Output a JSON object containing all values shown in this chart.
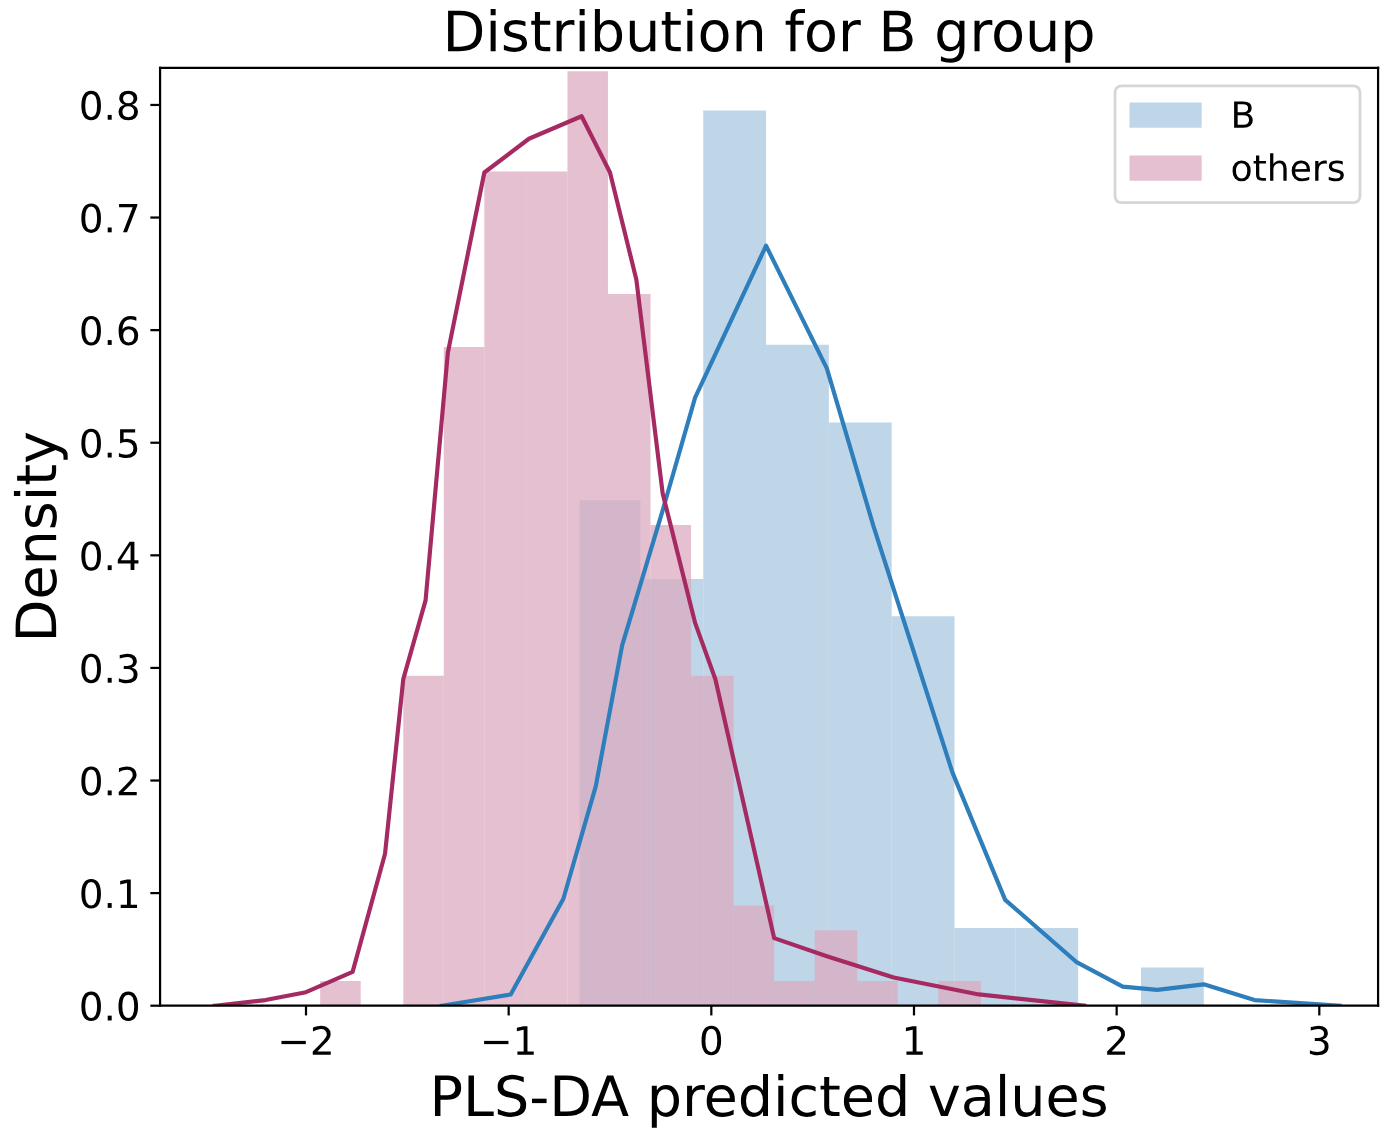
{
  "chart_data": {
    "type": "histogram",
    "title": "Distribution for B group",
    "xlabel": "PLS-DA predicted values",
    "ylabel": "Density",
    "xlim": [
      -2.72,
      3.29
    ],
    "ylim": [
      0,
      0.833
    ],
    "xticks": [
      {
        "value": -2,
        "label": "−2"
      },
      {
        "value": -1,
        "label": "−1"
      },
      0,
      1,
      2,
      3
    ],
    "yticks": [
      {
        "value": 0,
        "label": "0.0"
      },
      0.1,
      0.2,
      0.3,
      0.4,
      0.5,
      0.6,
      0.7,
      0.8
    ],
    "grid": false,
    "legend": "top right",
    "series": [
      {
        "name": "B",
        "color": "#a9c8e1",
        "bins": [
          -0.65,
          -0.35,
          -0.04,
          0.27,
          0.58,
          0.89,
          1.2,
          1.5,
          1.81,
          2.12,
          2.43
        ],
        "values": [
          0.449,
          0.379,
          0.795,
          0.587,
          0.518,
          0.346,
          0.069,
          0.069,
          0,
          0.034
        ]
      },
      {
        "name": "others",
        "color": "#dbabc0",
        "bins": [
          -1.93,
          -1.73,
          -1.52,
          -1.32,
          -1.12,
          -0.91,
          -0.71,
          -0.51,
          -0.3,
          -0.1,
          0.11,
          0.31,
          0.51,
          0.72,
          0.92,
          1.12,
          1.33
        ],
        "values": [
          0.022,
          0,
          0.293,
          0.585,
          0.741,
          0.741,
          0.83,
          0.632,
          0.427,
          0.293,
          0.089,
          0.022,
          0.067,
          0.022,
          0,
          0.022
        ]
      },
      {
        "type": "line",
        "color": "#2e7ebc",
        "x": [
          -1.33,
          -0.99,
          -0.73,
          -0.57,
          -0.44,
          -0.24,
          -0.08,
          0.27,
          0.57,
          0.8,
          1.19,
          1.45,
          1.8,
          2.03,
          2.2,
          2.43,
          2.68,
          3.1
        ],
        "values": [
          0,
          0.01,
          0.095,
          0.195,
          0.32,
          0.44,
          0.54,
          0.675,
          0.566,
          0.426,
          0.207,
          0.094,
          0.039,
          0.017,
          0.014,
          0.019,
          0.005,
          0
        ]
      },
      {
        "type": "line",
        "color": "#a52a62",
        "x": [
          -2.45,
          -2.2,
          -2.0,
          -1.77,
          -1.61,
          -1.52,
          -1.41,
          -1.3,
          -1.12,
          -0.9,
          -0.64,
          -0.5,
          -0.37,
          -0.24,
          -0.08,
          0.02,
          0.31,
          0.57,
          0.9,
          1.32,
          1.84
        ],
        "values": [
          0,
          0.005,
          0.012,
          0.03,
          0.135,
          0.29,
          0.36,
          0.58,
          0.74,
          0.77,
          0.79,
          0.74,
          0.645,
          0.455,
          0.34,
          0.29,
          0.06,
          0.044,
          0.025,
          0.01,
          0
        ]
      }
    ]
  }
}
